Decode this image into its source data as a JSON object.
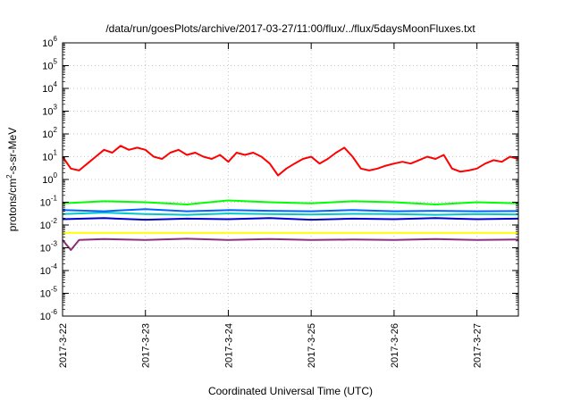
{
  "chart_data": {
    "type": "line",
    "title": "/data/run/goesPlots/archive/2017-03-27/11:00/flux/../flux/5daysMoonFluxes.txt",
    "xlabel": "Coordinated Universal Time (UTC)",
    "ylabel": "protons/cm²-s-sr-MeV",
    "ylabel_parts": {
      "pre": "protons/cm",
      "sup": "2",
      "post": "-s-sr-MeV"
    },
    "yscale": "log",
    "ylim_exponents": [
      -6,
      6
    ],
    "ytick_base": "10",
    "ytick_exponents": [
      "-6",
      "-5",
      "-4",
      "-3",
      "-2",
      "-1",
      "0",
      "1",
      "2",
      "3",
      "4",
      "5",
      "6"
    ],
    "xlim": [
      "2017-03-22",
      "2017-03-27 12:00"
    ],
    "xtick_labels": [
      "2017-3-22",
      "2017-3-23",
      "2017-3-24",
      "2017-3-25",
      "2017-3-26",
      "2017-3-27"
    ],
    "grid": true,
    "series": [
      {
        "color": "#ff0000",
        "x": [
          0,
          0.1,
          0.2,
          0.3,
          0.4,
          0.5,
          0.6,
          0.7,
          0.8,
          0.9,
          1.0,
          1.1,
          1.2,
          1.3,
          1.4,
          1.5,
          1.6,
          1.7,
          1.8,
          1.9,
          2.0,
          2.1,
          2.2,
          2.3,
          2.4,
          2.5,
          2.6,
          2.7,
          2.8,
          2.9,
          3.0,
          3.1,
          3.2,
          3.3,
          3.4,
          3.5,
          3.6,
          3.7,
          3.8,
          3.9,
          4.0,
          4.1,
          4.2,
          4.3,
          4.4,
          4.5,
          4.6,
          4.7,
          4.8,
          4.9,
          5.0,
          5.1,
          5.2,
          5.3,
          5.4,
          5.5
        ],
        "y": [
          10,
          3,
          2.5,
          5,
          10,
          20,
          15,
          30,
          20,
          25,
          20,
          10,
          8,
          15,
          20,
          12,
          15,
          10,
          8,
          12,
          6,
          15,
          12,
          15,
          10,
          5,
          1.5,
          3,
          5,
          8,
          10,
          5,
          8,
          15,
          25,
          10,
          3,
          2.5,
          3,
          4,
          5,
          6,
          5,
          7,
          10,
          8,
          12,
          3,
          2.2,
          2.5,
          3,
          5,
          7,
          6,
          10,
          8
        ]
      },
      {
        "color": "#00ff00",
        "x": [
          0,
          0.5,
          1.0,
          1.5,
          2.0,
          2.5,
          3.0,
          3.5,
          4.0,
          4.5,
          5.0,
          5.5
        ],
        "y": [
          0.09,
          0.11,
          0.1,
          0.08,
          0.12,
          0.1,
          0.09,
          0.11,
          0.1,
          0.08,
          0.1,
          0.09
        ]
      },
      {
        "color": "#00c8c8",
        "x": [
          0,
          0.5,
          1.0,
          1.5,
          2.0,
          2.5,
          3.0,
          3.5,
          4.0,
          4.5,
          5.0,
          5.5
        ],
        "y": [
          0.03,
          0.035,
          0.03,
          0.028,
          0.032,
          0.03,
          0.029,
          0.031,
          0.03,
          0.028,
          0.03,
          0.029
        ]
      },
      {
        "color": "#0066ff",
        "x": [
          0,
          0.5,
          1.0,
          1.5,
          2.0,
          2.5,
          3.0,
          3.5,
          4.0,
          4.5,
          5.0,
          5.5
        ],
        "y": [
          0.045,
          0.04,
          0.05,
          0.04,
          0.045,
          0.042,
          0.04,
          0.045,
          0.04,
          0.042,
          0.04,
          0.041
        ]
      },
      {
        "color": "#0000cc",
        "x": [
          0,
          0.5,
          1.0,
          1.5,
          2.0,
          2.5,
          3.0,
          3.5,
          4.0,
          4.5,
          5.0,
          5.5
        ],
        "y": [
          0.018,
          0.02,
          0.017,
          0.019,
          0.018,
          0.02,
          0.017,
          0.019,
          0.018,
          0.02,
          0.018,
          0.019
        ]
      },
      {
        "color": "#ffff00",
        "x": [
          0,
          0.5,
          1.0,
          1.5,
          2.0,
          2.5,
          3.0,
          3.5,
          4.0,
          4.5,
          5.0,
          5.5
        ],
        "y": [
          0.0045,
          0.0045,
          0.0045,
          0.0045,
          0.0045,
          0.0045,
          0.0045,
          0.0045,
          0.0045,
          0.0045,
          0.0045,
          0.0045
        ]
      },
      {
        "color": "#8b2f7a",
        "x": [
          0,
          0.1,
          0.2,
          0.5,
          1.0,
          1.5,
          2.0,
          2.5,
          3.0,
          3.5,
          4.0,
          4.5,
          5.0,
          5.5
        ],
        "y": [
          0.0022,
          0.0008,
          0.0022,
          0.0024,
          0.0022,
          0.0025,
          0.0022,
          0.0024,
          0.0022,
          0.0023,
          0.0022,
          0.0024,
          0.0022,
          0.0023
        ]
      }
    ]
  }
}
